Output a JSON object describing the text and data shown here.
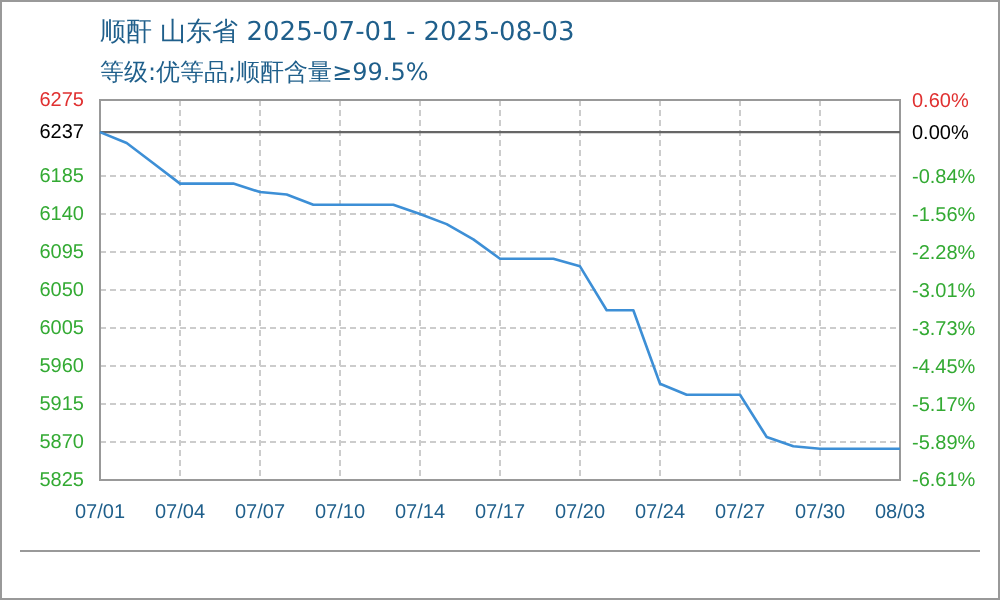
{
  "chart_data": {
    "type": "line",
    "title": "顺酐 山东省 2025-07-01 - 2025-08-03",
    "subtitle": "等级:优等品;顺酐含量≥99.5%",
    "categories": [
      "07/01",
      null,
      null,
      "07/04",
      null,
      null,
      "07/07",
      null,
      null,
      "07/10",
      null,
      null,
      "07/14",
      null,
      null,
      "07/17",
      null,
      null,
      "07/20",
      null,
      null,
      "07/24",
      null,
      null,
      "07/27",
      null,
      null,
      "07/30",
      null,
      null,
      "08/03"
    ],
    "series": [
      {
        "color": "#3d8fd6",
        "values": [
          6237,
          6224,
          6200,
          6176,
          6176,
          6176,
          6166,
          6163,
          6151,
          6151,
          6151,
          6151,
          6140,
          6128,
          6110,
          6087,
          6087,
          6087,
          6078,
          6026,
          6026,
          5939,
          5926,
          5926,
          5926,
          5876,
          5865,
          5862,
          5862,
          5862,
          5862
        ]
      }
    ],
    "ylim": [
      5825,
      6275
    ],
    "yticks": [
      5825,
      5870,
      5915,
      5960,
      6005,
      6050,
      6095,
      6140,
      6185,
      6237,
      6275
    ],
    "y2lim": [
      -6.61,
      0.61
    ],
    "y2ticks": [
      {
        "value": -6.61,
        "label": "-6.61%"
      },
      {
        "value": -5.89,
        "label": "-5.89%"
      },
      {
        "value": -5.17,
        "label": "-5.17%"
      },
      {
        "value": -4.45,
        "label": "-4.45%"
      },
      {
        "value": -3.73,
        "label": "-3.73%"
      },
      {
        "value": -3.01,
        "label": "-3.01%"
      },
      {
        "value": -2.28,
        "label": "-2.28%"
      },
      {
        "value": -1.56,
        "label": "-1.56%"
      },
      {
        "value": -0.84,
        "label": "-0.84%"
      },
      {
        "value": 0,
        "label": "0.00%"
      },
      {
        "value": 0.6,
        "label": "0.60%"
      }
    ],
    "ref_lines": [
      {
        "axis": "y",
        "value": 6237,
        "color": "#666666"
      }
    ],
    "grid": true,
    "marker": "none",
    "line_style": "solid"
  }
}
